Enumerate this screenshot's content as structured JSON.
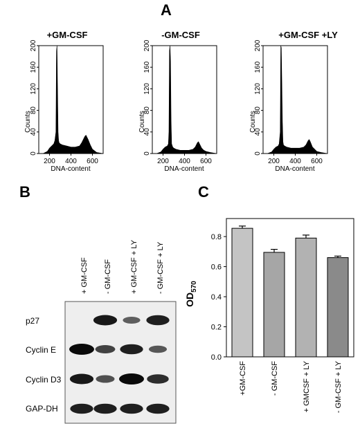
{
  "panels": {
    "a": {
      "letter": "A",
      "histograms": [
        {
          "title": "+GM-CSF",
          "ylabel": "Counts",
          "xlabel": "DNA-content",
          "yticks": [
            "0",
            "40",
            "80",
            "120",
            "160",
            "200"
          ],
          "xticks": [
            "200",
            "400",
            "600"
          ]
        },
        {
          "title": "-GM-CSF",
          "ylabel": "Counts",
          "xlabel": "DNA-content",
          "yticks": [
            "0",
            "40",
            "80",
            "120",
            "160",
            "200"
          ],
          "xticks": [
            "200",
            "400",
            "600"
          ]
        },
        {
          "title": "+GM-CSF +LY",
          "ylabel": "Counts",
          "xlabel": "DNA-content",
          "yticks": [
            "0",
            "40",
            "80",
            "120",
            "160",
            "200"
          ],
          "xticks": [
            "200",
            "400",
            "600"
          ]
        }
      ]
    },
    "b": {
      "letter": "B",
      "columns": [
        "+ GM-CSF",
        "- GM-CSF",
        "+ GM-CSF + LY",
        "- GM-CSF + LY"
      ],
      "rows": [
        "p27",
        "Cyclin E",
        "Cyclin D3",
        "GAP-DH"
      ],
      "band_intensity": [
        [
          0.0,
          0.9,
          0.4,
          0.85
        ],
        [
          1.0,
          0.6,
          0.85,
          0.45
        ],
        [
          0.9,
          0.5,
          1.0,
          0.75
        ],
        [
          0.85,
          0.85,
          0.85,
          0.85
        ]
      ]
    },
    "c": {
      "letter": "C",
      "ylabel": "OD",
      "ylabel_sub": "570",
      "yticks": [
        "0.0",
        "0.2",
        "0.4",
        "0.6",
        "0.8"
      ]
    }
  },
  "chart_data": [
    {
      "type": "area",
      "title": "+GM-CSF",
      "xlabel": "DNA-content",
      "ylabel": "Counts",
      "xlim": [
        100,
        700
      ],
      "ylim": [
        0,
        200
      ],
      "x": [
        100,
        140,
        180,
        200,
        220,
        240,
        250,
        260,
        265,
        270,
        275,
        280,
        285,
        290,
        300,
        320,
        360,
        400,
        440,
        480,
        500,
        520,
        530,
        540,
        560,
        580,
        600,
        640,
        700
      ],
      "y": [
        0,
        0,
        4,
        10,
        14,
        18,
        24,
        40,
        190,
        200,
        120,
        40,
        24,
        20,
        18,
        16,
        14,
        12,
        12,
        14,
        20,
        28,
        32,
        34,
        26,
        16,
        8,
        2,
        0
      ]
    },
    {
      "type": "area",
      "title": "-GM-CSF",
      "xlabel": "DNA-content",
      "ylabel": "Counts",
      "xlim": [
        100,
        700
      ],
      "ylim": [
        0,
        200
      ],
      "x": [
        100,
        140,
        180,
        200,
        220,
        240,
        250,
        255,
        260,
        265,
        270,
        275,
        280,
        290,
        300,
        320,
        360,
        400,
        440,
        480,
        500,
        520,
        530,
        540,
        560,
        580,
        600,
        640,
        700
      ],
      "y": [
        0,
        0,
        3,
        8,
        12,
        14,
        18,
        40,
        190,
        200,
        170,
        60,
        18,
        12,
        10,
        8,
        6,
        6,
        6,
        8,
        12,
        20,
        22,
        18,
        10,
        6,
        4,
        2,
        0
      ]
    },
    {
      "type": "area",
      "title": "+GM-CSF +LY",
      "xlabel": "DNA-content",
      "ylabel": "Counts",
      "xlim": [
        100,
        700
      ],
      "ylim": [
        0,
        200
      ],
      "x": [
        100,
        140,
        180,
        200,
        220,
        240,
        250,
        260,
        265,
        270,
        275,
        280,
        285,
        290,
        300,
        320,
        360,
        400,
        440,
        480,
        500,
        520,
        530,
        540,
        560,
        580,
        600,
        640,
        700
      ],
      "y": [
        0,
        0,
        3,
        8,
        12,
        14,
        18,
        40,
        200,
        196,
        130,
        60,
        22,
        16,
        14,
        12,
        10,
        10,
        10,
        12,
        16,
        24,
        26,
        22,
        12,
        8,
        4,
        2,
        0
      ]
    },
    {
      "type": "bar",
      "categories": [
        "+GM-CSF",
        "- GM-CSF",
        "+ GMCSF + LY",
        "- GM-CSF + LY"
      ],
      "values": [
        0.855,
        0.695,
        0.79,
        0.66
      ],
      "errors": [
        0.015,
        0.02,
        0.02,
        0.01
      ],
      "ylabel": "OD570",
      "ylim": [
        0,
        0.92
      ],
      "colors": [
        "#c4c4c4",
        "#a6a6a6",
        "#b2b2b2",
        "#8a8a8a"
      ]
    }
  ]
}
